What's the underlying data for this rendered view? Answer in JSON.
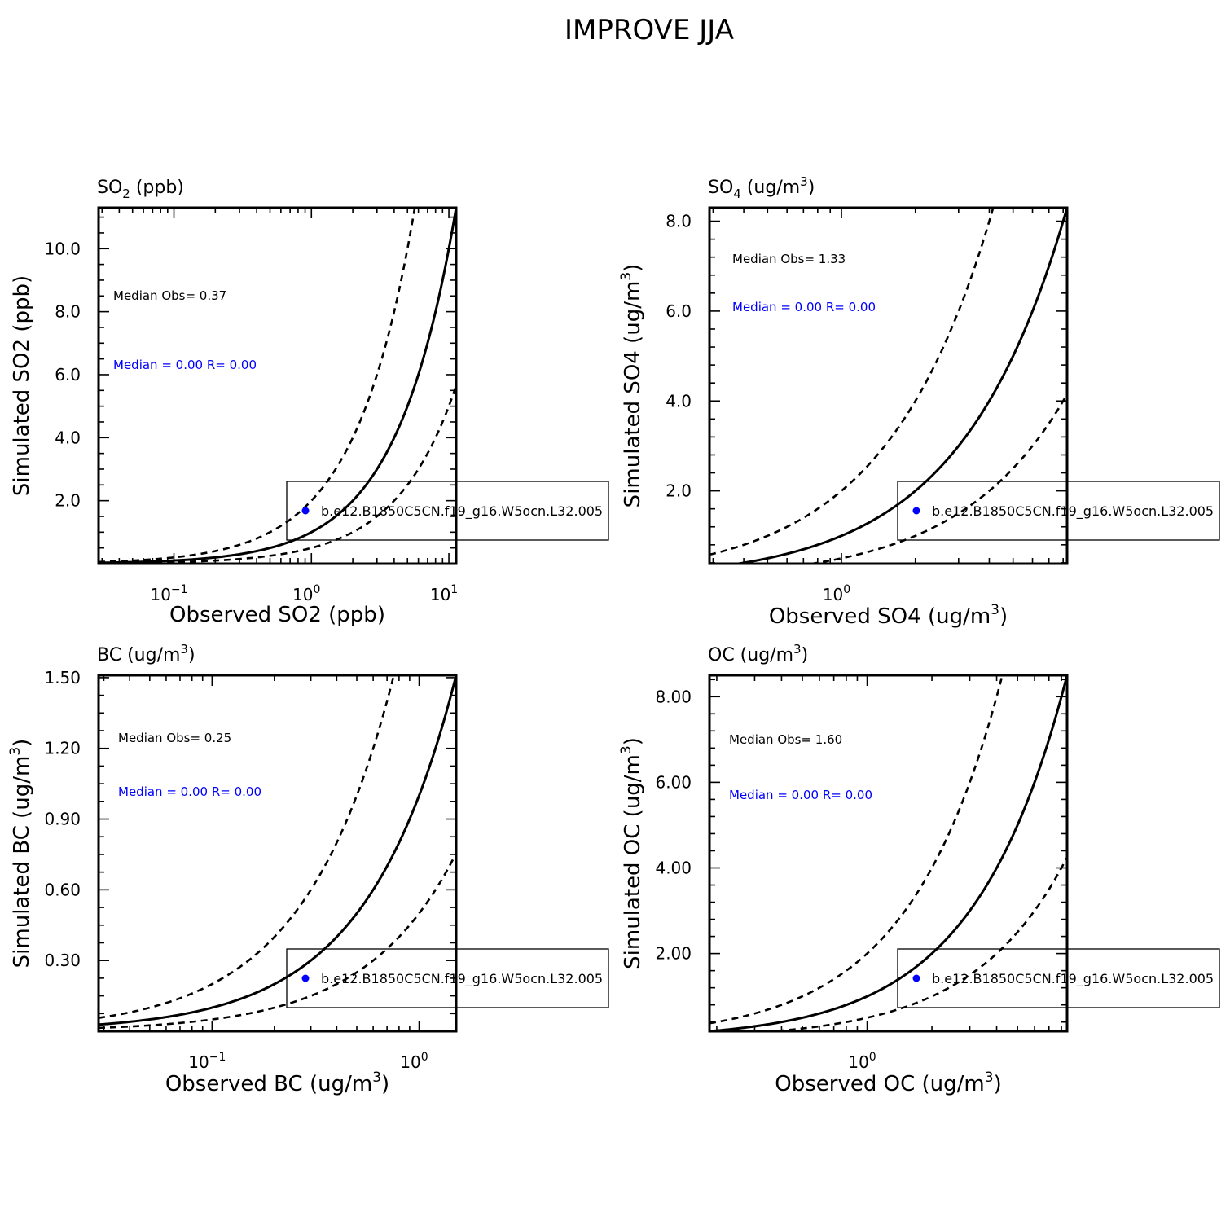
{
  "title": "IMPROVE JJA",
  "colors": {
    "axis": "#000000",
    "model": "#0000ff",
    "stats_model": "#0000ff"
  },
  "chart_data": [
    {
      "type": "scatter",
      "panel_title": {
        "base": "SO",
        "sub": "2",
        "rest": " (ppb)",
        "sup": ""
      },
      "xlabel": {
        "text": "Observed SO2 (ppb)",
        "sup": "",
        "tail": ""
      },
      "ylabel": {
        "text": "Simulated SO2 (ppb)",
        "sup": "",
        "tail": ""
      },
      "x_scale": "log",
      "xlim": [
        0.0283,
        11.3
      ],
      "ylim": [
        0,
        11.3
      ],
      "x_ticks": [
        {
          "value": 0.1,
          "base": "10",
          "exp": "−1"
        },
        {
          "value": 1,
          "base": "10",
          "exp": "0"
        },
        {
          "value": 10,
          "base": "10",
          "exp": "1"
        }
      ],
      "y_ticks": [
        {
          "value": 2,
          "label": "2.0"
        },
        {
          "value": 4,
          "label": "4.0"
        },
        {
          "value": 6,
          "label": "6.0"
        },
        {
          "value": 8,
          "label": "8.0"
        },
        {
          "value": 10,
          "label": "10.0"
        }
      ],
      "y_minor_step": 0.5,
      "reference_lines": [
        {
          "name": "1:1",
          "slope": 1,
          "style": "solid"
        },
        {
          "name": "2:1",
          "slope": 2,
          "style": "dashed"
        },
        {
          "name": "1:2",
          "slope": 0.5,
          "style": "dashed"
        }
      ],
      "stats": {
        "obs": "Median Obs= 0.37",
        "model": "Median = 0.00 R= 0.00"
      },
      "legend": {
        "label": "b.e12.B1850C5CN.f19_g16.W5ocn.L32.005",
        "marker": "filled-circle"
      },
      "series": [
        {
          "name": "b.e12.B1850C5CN.f19_g16.W5ocn.L32.005",
          "points": []
        }
      ]
    },
    {
      "type": "scatter",
      "panel_title": {
        "base": "SO",
        "sub": "4",
        "rest": " (ug/m",
        "sup": "3",
        "tail": ")"
      },
      "xlabel": {
        "text": "Observed SO4 (ug/m",
        "sup": "3",
        "tail": ")"
      },
      "ylabel": {
        "text": "Simulated SO4 (ug/m",
        "sup": "3",
        "tail": ")"
      },
      "x_scale": "log",
      "xlim": [
        0.29,
        8.3
      ],
      "ylim": [
        0.38,
        8.3
      ],
      "x_ticks": [
        {
          "value": 1,
          "base": "10",
          "exp": "0"
        }
      ],
      "y_ticks": [
        {
          "value": 2,
          "label": "2.0"
        },
        {
          "value": 4,
          "label": "4.0"
        },
        {
          "value": 6,
          "label": "6.0"
        },
        {
          "value": 8,
          "label": "8.0"
        }
      ],
      "y_minor_step": 0.4,
      "reference_lines": [
        {
          "name": "1:1",
          "slope": 1,
          "style": "solid"
        },
        {
          "name": "2:1",
          "slope": 2,
          "style": "dashed"
        },
        {
          "name": "1:2",
          "slope": 0.5,
          "style": "dashed"
        }
      ],
      "stats": {
        "obs": "Median Obs= 1.33",
        "model": "Median = 0.00 R= 0.00"
      },
      "legend": {
        "label": "b.e12.B1850C5CN.f19_g16.W5ocn.L32.005",
        "marker": "filled-circle"
      },
      "series": [
        {
          "name": "b.e12.B1850C5CN.f19_g16.W5ocn.L32.005",
          "points": []
        }
      ]
    },
    {
      "type": "scatter",
      "panel_title": {
        "base": "BC",
        "sub": "",
        "rest": " (ug/m",
        "sup": "3",
        "tail": ")"
      },
      "xlabel": {
        "text": "Observed BC (ug/m",
        "sup": "3",
        "tail": ")"
      },
      "ylabel": {
        "text": "Simulated BC (ug/m",
        "sup": "3",
        "tail": ")"
      },
      "x_scale": "log",
      "xlim": [
        0.0283,
        1.51
      ],
      "ylim": [
        0,
        1.51
      ],
      "x_ticks": [
        {
          "value": 0.1,
          "base": "10",
          "exp": "−1"
        },
        {
          "value": 1,
          "base": "10",
          "exp": "0"
        }
      ],
      "y_ticks": [
        {
          "value": 0.3,
          "label": "0.30"
        },
        {
          "value": 0.6,
          "label": "0.60"
        },
        {
          "value": 0.9,
          "label": "0.90"
        },
        {
          "value": 1.2,
          "label": "1.20"
        },
        {
          "value": 1.5,
          "label": "1.50"
        }
      ],
      "y_minor_step": 0.075,
      "reference_lines": [
        {
          "name": "1:1",
          "slope": 1,
          "style": "solid"
        },
        {
          "name": "2:1",
          "slope": 2,
          "style": "dashed"
        },
        {
          "name": "1:2",
          "slope": 0.5,
          "style": "dashed"
        }
      ],
      "stats": {
        "obs": "Median Obs= 0.25",
        "model": "Median = 0.00 R= 0.00"
      },
      "legend": {
        "label": "b.e12.B1850C5CN.f19_g16.W5ocn.L32.005",
        "marker": "filled-circle"
      },
      "series": [
        {
          "name": "b.e12.B1850C5CN.f19_g16.W5ocn.L32.005",
          "points": []
        }
      ]
    },
    {
      "type": "scatter",
      "panel_title": {
        "base": "OC",
        "sub": "",
        "rest": " (ug/m",
        "sup": "3",
        "tail": ")"
      },
      "xlabel": {
        "text": "Observed OC (ug/m",
        "sup": "3",
        "tail": ")"
      },
      "ylabel": {
        "text": "Simulated OC (ug/m",
        "sup": "3",
        "tail": ")"
      },
      "x_scale": "log",
      "xlim": [
        0.185,
        8.5
      ],
      "ylim": [
        0.185,
        8.5
      ],
      "x_ticks": [
        {
          "value": 1,
          "base": "10",
          "exp": "0"
        }
      ],
      "y_ticks": [
        {
          "value": 2,
          "label": "2.00"
        },
        {
          "value": 4,
          "label": "4.00"
        },
        {
          "value": 6,
          "label": "6.00"
        },
        {
          "value": 8,
          "label": "8.00"
        }
      ],
      "y_minor_step": 0.4,
      "reference_lines": [
        {
          "name": "1:1",
          "slope": 1,
          "style": "solid"
        },
        {
          "name": "2:1",
          "slope": 2,
          "style": "dashed"
        },
        {
          "name": "1:2",
          "slope": 0.5,
          "style": "dashed"
        }
      ],
      "stats": {
        "obs": "Median Obs= 1.60",
        "model": "Median = 0.00 R= 0.00"
      },
      "legend": {
        "label": "b.e12.B1850C5CN.f19_g16.W5ocn.L32.005",
        "marker": "filled-circle"
      },
      "series": [
        {
          "name": "b.e12.B1850C5CN.f19_g16.W5ocn.L32.005",
          "points": []
        }
      ]
    }
  ]
}
